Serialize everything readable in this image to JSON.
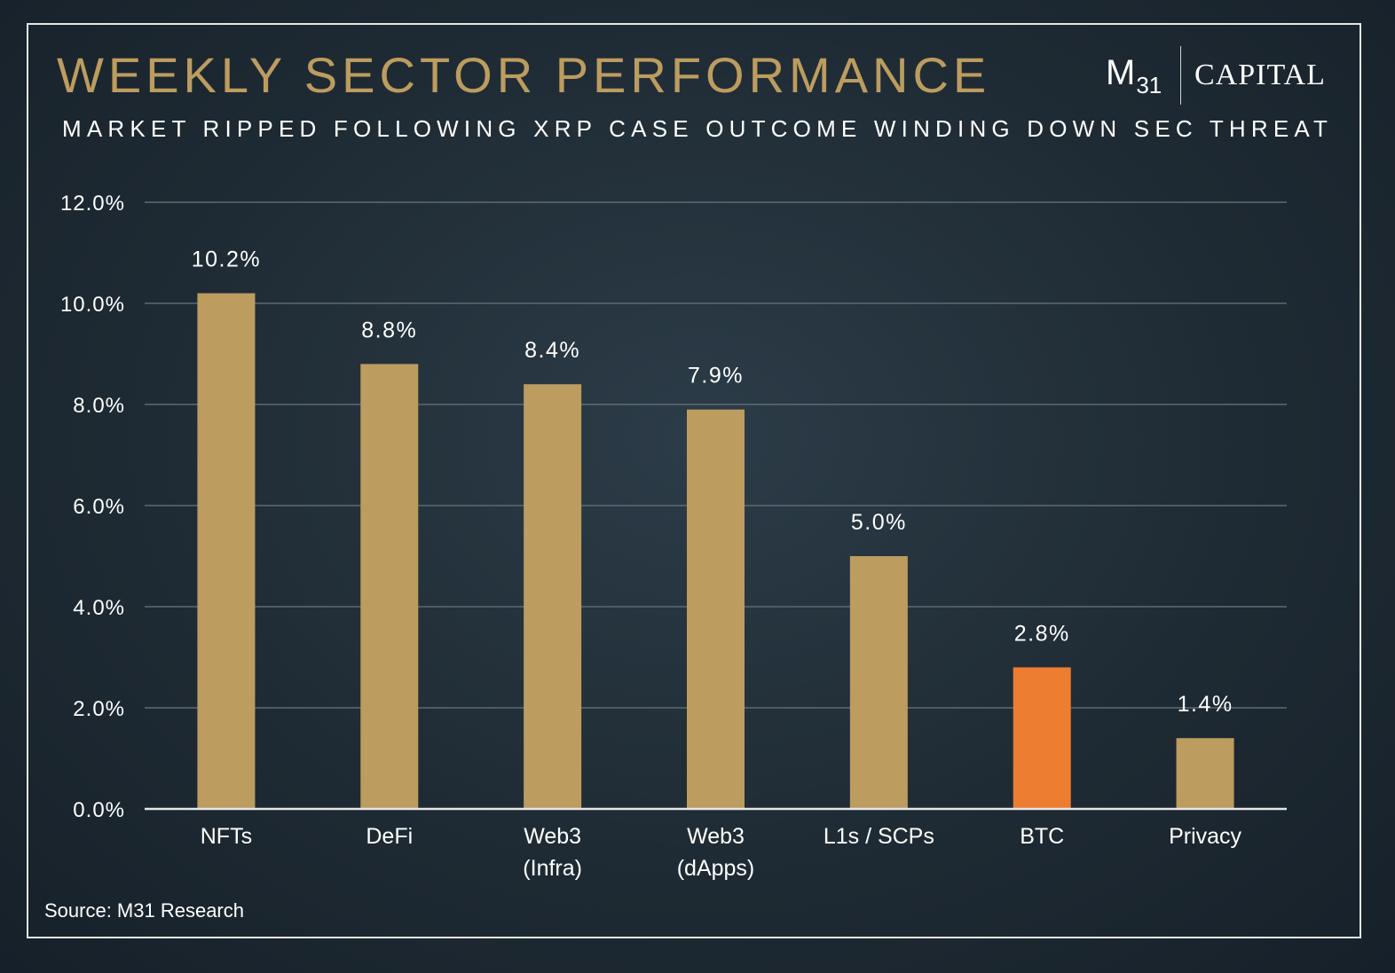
{
  "header": {
    "title": "WEEKLY SECTOR PERFORMANCE",
    "subtitle": "MARKET RIPPED FOLLOWING XRP CASE OUTCOME WINDING DOWN SEC THREAT"
  },
  "logo": {
    "mark": "M",
    "mark_sub": "31",
    "wordmark": "CAPITAL"
  },
  "footer": {
    "source": "Source: M31 Research"
  },
  "colors": {
    "background": "#1f2b34",
    "accent_gold": "#bc9c5f",
    "highlight_orange": "#ed7d31",
    "text": "#ffffff",
    "gridline": "#5d6a73"
  },
  "chart_data": {
    "type": "bar",
    "categories": [
      [
        "NFTs"
      ],
      [
        "DeFi"
      ],
      [
        "Web3",
        "(Infra)"
      ],
      [
        "Web3",
        "(dApps)"
      ],
      [
        "L1s / SCPs"
      ],
      [
        "BTC"
      ],
      [
        "Privacy"
      ]
    ],
    "values": [
      10.2,
      8.8,
      8.4,
      7.9,
      5.0,
      2.8,
      1.4
    ],
    "data_labels": [
      "10.2%",
      "8.8%",
      "8.4%",
      "7.9%",
      "5.0%",
      "2.8%",
      "1.4%"
    ],
    "bar_colors": [
      "#bc9c5f",
      "#bc9c5f",
      "#bc9c5f",
      "#bc9c5f",
      "#bc9c5f",
      "#ed7d31",
      "#bc9c5f"
    ],
    "y_ticks": [
      0,
      2,
      4,
      6,
      8,
      10,
      12
    ],
    "y_tick_labels": [
      "0.0%",
      "2.0%",
      "4.0%",
      "6.0%",
      "8.0%",
      "10.0%",
      "12.0%"
    ],
    "ylim": [
      0,
      12
    ],
    "grid": true,
    "legend": false
  }
}
